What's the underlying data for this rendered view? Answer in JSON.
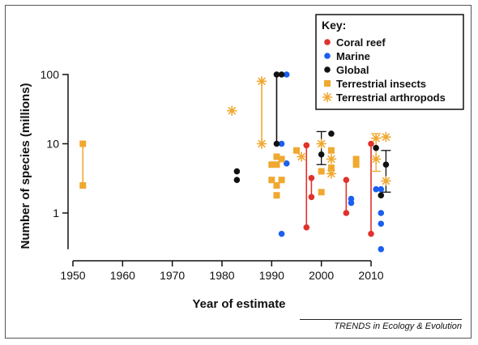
{
  "chart_data": {
    "type": "scatter",
    "xlabel": "Year of estimate",
    "ylabel": "Number of species (millions)",
    "xlim": [
      1948,
      2015
    ],
    "ylim": [
      0.25,
      120
    ],
    "y_scale": "log",
    "x_ticks": [
      "1950",
      "1960",
      "1970",
      "1980",
      "1990",
      "2000",
      "2010"
    ],
    "y_ticks": [
      "1",
      "10",
      "100"
    ],
    "legend": {
      "title": "Key:",
      "position": "top-right",
      "entries": [
        {
          "label": "Coral reef",
          "color": "#e0322b",
          "marker": "circle"
        },
        {
          "label": "Marine",
          "color": "#1a5ff0",
          "marker": "circle"
        },
        {
          "label": "Global",
          "color": "#111111",
          "marker": "circle"
        },
        {
          "label": "Terrestrial insects",
          "color": "#f0a830",
          "marker": "square"
        },
        {
          "label": "Terrestrial arthropods",
          "color": "#f0a830",
          "marker": "asterisk"
        }
      ]
    },
    "series": [
      {
        "name": "Coral reef",
        "color": "#e0322b",
        "marker": "circle",
        "points": [
          {
            "x": 1997,
            "y": 9.5
          },
          {
            "x": 1997,
            "y": 0.62
          },
          {
            "x": 1998,
            "y": 3.2
          },
          {
            "x": 1998,
            "y": 1.7
          },
          {
            "x": 2005,
            "y": 3.0
          },
          {
            "x": 2005,
            "y": 1.0
          },
          {
            "x": 2010,
            "y": 10
          },
          {
            "x": 2010,
            "y": 0.5
          }
        ],
        "ranges": [
          {
            "x": 1997,
            "y1": 0.62,
            "y2": 9.5
          },
          {
            "x": 1998,
            "y1": 1.7,
            "y2": 3.2
          },
          {
            "x": 2005,
            "y1": 1.0,
            "y2": 3.0
          },
          {
            "x": 2010,
            "y1": 0.5,
            "y2": 10
          }
        ]
      },
      {
        "name": "Marine",
        "color": "#1a5ff0",
        "marker": "circle",
        "points": [
          {
            "x": 1992,
            "y": 10
          },
          {
            "x": 1992,
            "y": 0.5
          },
          {
            "x": 1993,
            "y": 100
          },
          {
            "x": 1993,
            "y": 5.2
          },
          {
            "x": 2006,
            "y": 1.6
          },
          {
            "x": 2006,
            "y": 1.4
          },
          {
            "x": 2011,
            "y": 2.2
          },
          {
            "x": 2012,
            "y": 2.2
          },
          {
            "x": 2012,
            "y": 1.0
          },
          {
            "x": 2012,
            "y": 0.7
          },
          {
            "x": 2012,
            "y": 0.3
          }
        ],
        "ranges": []
      },
      {
        "name": "Global",
        "color": "#111111",
        "marker": "circle",
        "points": [
          {
            "x": 1983,
            "y": 4.0
          },
          {
            "x": 1983,
            "y": 3.0
          },
          {
            "x": 1991,
            "y": 100
          },
          {
            "x": 1992,
            "y": 100
          },
          {
            "x": 1991,
            "y": 10
          },
          {
            "x": 2000,
            "y": 7.0
          },
          {
            "x": 2002,
            "y": 14
          },
          {
            "x": 2011,
            "y": 8.7
          },
          {
            "x": 2012,
            "y": 1.8
          },
          {
            "x": 2013,
            "y": 5.0
          }
        ],
        "ranges": [
          {
            "x": 1991,
            "y1": 10,
            "y2": 100
          }
        ],
        "error_bars": [
          {
            "x": 2000,
            "y1": 5.0,
            "y2": 15
          },
          {
            "x": 2013,
            "y1": 2.0,
            "y2": 8.0
          }
        ]
      },
      {
        "name": "Terrestrial insects",
        "color": "#f0a830",
        "marker": "square",
        "points": [
          {
            "x": 1952,
            "y": 10
          },
          {
            "x": 1952,
            "y": 2.5
          },
          {
            "x": 1990,
            "y": 5.0
          },
          {
            "x": 1990,
            "y": 3.0
          },
          {
            "x": 1991,
            "y": 6.5
          },
          {
            "x": 1991,
            "y": 5.0
          },
          {
            "x": 1991,
            "y": 2.5
          },
          {
            "x": 1991,
            "y": 1.8
          },
          {
            "x": 1992,
            "y": 6.0
          },
          {
            "x": 1992,
            "y": 3.0
          },
          {
            "x": 1995,
            "y": 8.0
          },
          {
            "x": 2000,
            "y": 4.0
          },
          {
            "x": 2000,
            "y": 2.0
          },
          {
            "x": 2002,
            "y": 8.0
          },
          {
            "x": 2002,
            "y": 4.5
          },
          {
            "x": 2007,
            "y": 6.0
          },
          {
            "x": 2007,
            "y": 5.0
          }
        ],
        "ranges": [
          {
            "x": 1952,
            "y1": 2.5,
            "y2": 10
          }
        ]
      },
      {
        "name": "Terrestrial arthropods",
        "color": "#f0a830",
        "marker": "asterisk",
        "points": [
          {
            "x": 1982,
            "y": 30
          },
          {
            "x": 1988,
            "y": 80
          },
          {
            "x": 1988,
            "y": 10
          },
          {
            "x": 1996,
            "y": 6.5
          },
          {
            "x": 2000,
            "y": 10
          },
          {
            "x": 2002,
            "y": 6.0
          },
          {
            "x": 2002,
            "y": 3.7
          },
          {
            "x": 2011,
            "y": 12
          },
          {
            "x": 2011,
            "y": 6.0
          },
          {
            "x": 2013,
            "y": 12.5
          },
          {
            "x": 2013,
            "y": 2.9
          }
        ],
        "ranges": [
          {
            "x": 1988,
            "y1": 10,
            "y2": 80
          }
        ],
        "error_bars": [
          {
            "x": 2011,
            "y1": 4.0,
            "y2": 14
          }
        ]
      }
    ]
  },
  "source_label": "TRENDS in Ecology & Evolution"
}
